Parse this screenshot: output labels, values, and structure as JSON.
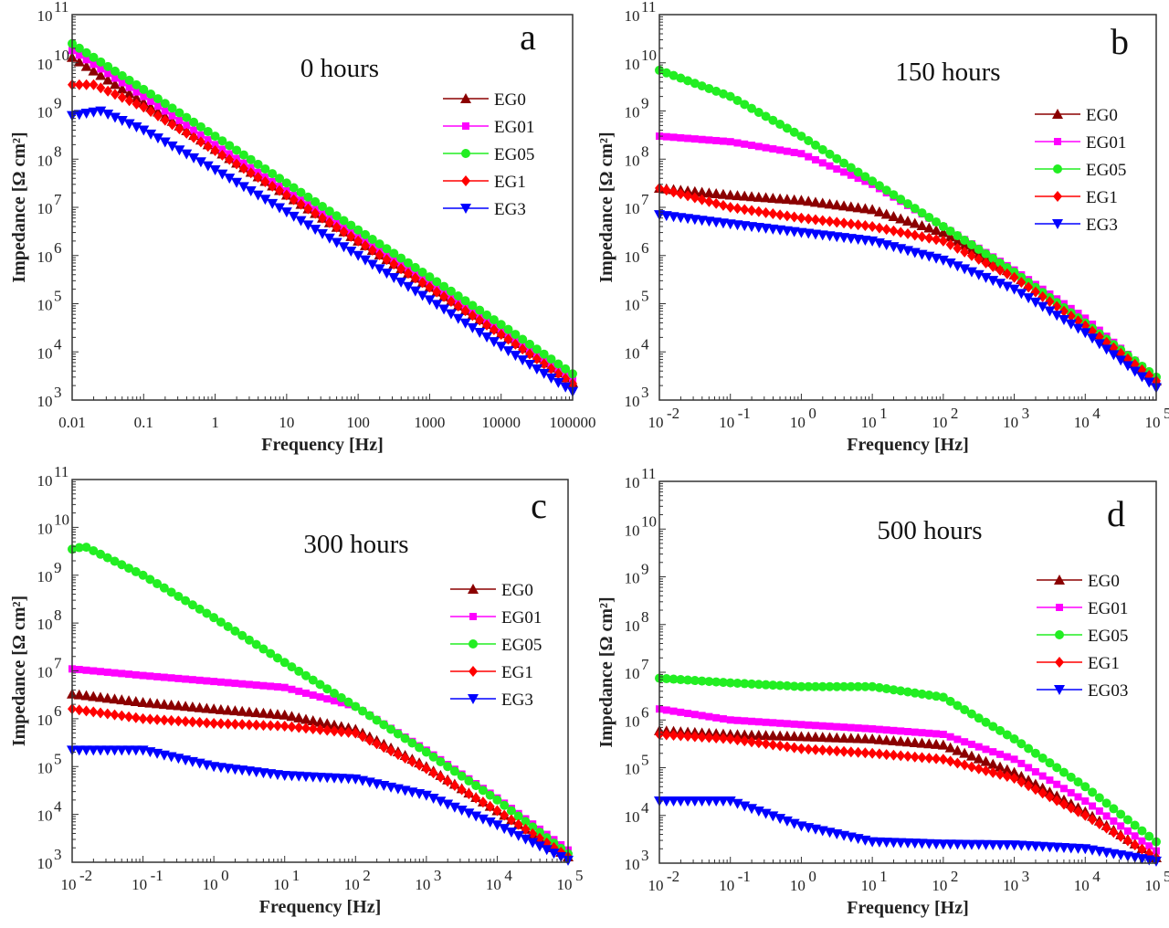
{
  "chart_data": [
    {
      "type": "scatter",
      "panel_letter": "a",
      "title": "0 hours",
      "xlabel": "Frequency [Hz]",
      "ylabel": "Impedance [Ω cm²]",
      "x_scale": "log",
      "y_scale": "log",
      "xlim": [
        0.01,
        100000
      ],
      "ylim": [
        1000,
        100000000000
      ],
      "x_tick_labels": [
        "0.01",
        "0.1",
        "1",
        "10",
        "100",
        "1000",
        "10000",
        "100000"
      ],
      "x_tick_style": "plain",
      "series": [
        {
          "name": "EG0",
          "color": "#8b0000",
          "marker": "triangle-up",
          "points": [
            [
              0.01,
              13000000000.0
            ],
            [
              0.1,
              1500000000.0
            ],
            [
              1,
              160000000.0
            ],
            [
              10,
              18000000.0
            ],
            [
              100,
              2000000.0
            ],
            [
              1000,
              220000.0
            ],
            [
              10000,
              24000.0
            ],
            [
              100000,
              2300.0
            ]
          ]
        },
        {
          "name": "EG01",
          "color": "#ff00ff",
          "marker": "square",
          "points": [
            [
              0.01,
              18000000000.0
            ],
            [
              0.1,
              2000000000.0
            ],
            [
              1,
              200000000.0
            ],
            [
              10,
              22000000.0
            ],
            [
              100,
              2400000.0
            ],
            [
              1000,
              260000.0
            ],
            [
              10000,
              27000.0
            ],
            [
              100000,
              2600.0
            ]
          ]
        },
        {
          "name": "EG05",
          "color": "#22ee22",
          "marker": "circle",
          "points": [
            [
              0.01,
              25000000000.0
            ],
            [
              0.1,
              2800000000.0
            ],
            [
              1,
              300000000.0
            ],
            [
              10,
              32000000.0
            ],
            [
              100,
              3400000.0
            ],
            [
              1000,
              360000.0
            ],
            [
              10000,
              37000.0
            ],
            [
              100000,
              3500.0
            ]
          ]
        },
        {
          "name": "EG1",
          "color": "#ff0000",
          "marker": "diamond",
          "points": [
            [
              0.01,
              3500000000.0
            ],
            [
              0.02,
              3500000000.0
            ],
            [
              0.1,
              1200000000.0
            ],
            [
              1,
              150000000.0
            ],
            [
              10,
              18000000.0
            ],
            [
              100,
              2000000.0
            ],
            [
              1000,
              220000.0
            ],
            [
              10000,
              23000.0
            ],
            [
              100000,
              2200.0
            ]
          ]
        },
        {
          "name": "EG3",
          "color": "#0000ff",
          "marker": "triangle-down",
          "points": [
            [
              0.01,
              800000000.0
            ],
            [
              0.025,
              1000000000.0
            ],
            [
              0.1,
              400000000.0
            ],
            [
              1,
              60000000.0
            ],
            [
              10,
              8000000.0
            ],
            [
              100,
              1000000.0
            ],
            [
              1000,
              120000.0
            ],
            [
              10000,
              13000.0
            ],
            [
              100000,
              1500.0
            ]
          ]
        }
      ]
    },
    {
      "type": "scatter",
      "panel_letter": "b",
      "title": "150 hours",
      "xlabel": "Frequency [Hz]",
      "ylabel": "Impedance [Ω cm²]",
      "x_scale": "log",
      "y_scale": "log",
      "xlim": [
        0.01,
        100000
      ],
      "ylim": [
        1000,
        100000000000
      ],
      "x_tick_labels": [
        "-2",
        "-1",
        "0",
        "1",
        "2",
        "3",
        "4",
        "5"
      ],
      "x_tick_style": "power10",
      "series": [
        {
          "name": "EG0",
          "color": "#8b0000",
          "marker": "triangle-up",
          "points": [
            [
              0.01,
              25000000.0
            ],
            [
              0.1,
              18000000.0
            ],
            [
              1,
              14000000.0
            ],
            [
              10,
              9000000.0
            ],
            [
              100,
              3000000.0
            ],
            [
              1000,
              400000.0
            ],
            [
              10000,
              40000.0
            ],
            [
              100000,
              2500.0
            ]
          ]
        },
        {
          "name": "EG01",
          "color": "#ff00ff",
          "marker": "square",
          "points": [
            [
              0.01,
              300000000.0
            ],
            [
              0.1,
              230000000.0
            ],
            [
              1,
              130000000.0
            ],
            [
              10,
              30000000.0
            ],
            [
              100,
              4000000.0
            ],
            [
              1000,
              500000.0
            ],
            [
              10000,
              50000.0
            ],
            [
              100000,
              2800.0
            ]
          ]
        },
        {
          "name": "EG05",
          "color": "#22ee22",
          "marker": "circle",
          "points": [
            [
              0.01,
              7000000000.0
            ],
            [
              0.1,
              2000000000.0
            ],
            [
              1,
              300000000.0
            ],
            [
              10,
              35000000.0
            ],
            [
              100,
              4000000.0
            ],
            [
              1000,
              450000.0
            ],
            [
              10000,
              40000.0
            ],
            [
              100000,
              3000.0
            ]
          ]
        },
        {
          "name": "EG1",
          "color": "#ff0000",
          "marker": "diamond",
          "points": [
            [
              0.01,
              25000000.0
            ],
            [
              0.1,
              10000000.0
            ],
            [
              1,
              6000000.0
            ],
            [
              10,
              4000000.0
            ],
            [
              100,
              2000000.0
            ],
            [
              1000,
              350000.0
            ],
            [
              10000,
              35000.0
            ],
            [
              100000,
              2500.0
            ]
          ]
        },
        {
          "name": "EG3",
          "color": "#0000ff",
          "marker": "triangle-down",
          "points": [
            [
              0.01,
              7000000.0
            ],
            [
              0.1,
              4500000.0
            ],
            [
              1,
              3000000.0
            ],
            [
              10,
              2000000.0
            ],
            [
              100,
              800000.0
            ],
            [
              1000,
              200000.0
            ],
            [
              10000,
              25000.0
            ],
            [
              100000,
              1800.0
            ]
          ]
        }
      ]
    },
    {
      "type": "scatter",
      "panel_letter": "c",
      "title": "300 hours",
      "xlabel": "Frequency [Hz]",
      "ylabel": "Impedance [Ω cm²]",
      "x_scale": "log",
      "y_scale": "log",
      "xlim": [
        0.01,
        100000
      ],
      "ylim": [
        1000,
        100000000000
      ],
      "x_tick_labels": [
        "-2",
        "-1",
        "0",
        "1",
        "2",
        "3",
        "4",
        "5"
      ],
      "x_tick_style": "power10",
      "series": [
        {
          "name": "EG0",
          "color": "#8b0000",
          "marker": "triangle-up",
          "points": [
            [
              0.01,
              3300000.0
            ],
            [
              0.1,
              2200000.0
            ],
            [
              1,
              1600000.0
            ],
            [
              10,
              1200000.0
            ],
            [
              100,
              600000.0
            ],
            [
              1000,
              100000.0
            ],
            [
              10000,
              12000.0
            ],
            [
              100000,
              1300.0
            ]
          ]
        },
        {
          "name": "EG01",
          "color": "#ff00ff",
          "marker": "square",
          "points": [
            [
              0.01,
              11000000.0
            ],
            [
              0.1,
              8000000.0
            ],
            [
              1,
              6000000.0
            ],
            [
              10,
              4500000.0
            ],
            [
              100,
              1800000.0
            ],
            [
              1000,
              220000.0
            ],
            [
              10000,
              22000.0
            ],
            [
              100000,
              1800.0
            ]
          ]
        },
        {
          "name": "EG05",
          "color": "#22ee22",
          "marker": "circle",
          "points": [
            [
              0.01,
              3500000000.0
            ],
            [
              0.015,
              4000000000.0
            ],
            [
              0.1,
              1000000000.0
            ],
            [
              1,
              130000000.0
            ],
            [
              10,
              15000000.0
            ],
            [
              100,
              1800000.0
            ],
            [
              1000,
              200000.0
            ],
            [
              10000,
              20000.0
            ],
            [
              100000,
              1500.0
            ]
          ]
        },
        {
          "name": "EG1",
          "color": "#ff0000",
          "marker": "diamond",
          "points": [
            [
              0.01,
              1600000.0
            ],
            [
              0.1,
              1000000.0
            ],
            [
              1,
              800000.0
            ],
            [
              10,
              700000.0
            ],
            [
              100,
              500000.0
            ],
            [
              1000,
              90000.0
            ],
            [
              10000,
              12000.0
            ],
            [
              100000,
              1300.0
            ]
          ]
        },
        {
          "name": "EG3",
          "color": "#0000ff",
          "marker": "triangle-down",
          "points": [
            [
              0.01,
              220000.0
            ],
            [
              0.1,
              220000.0
            ],
            [
              1,
              100000.0
            ],
            [
              10,
              65000.0
            ],
            [
              100,
              55000.0
            ],
            [
              1000,
              25000.0
            ],
            [
              10000,
              6000.0
            ],
            [
              100000,
              1100.0
            ]
          ]
        }
      ]
    },
    {
      "type": "scatter",
      "panel_letter": "d",
      "title": "500 hours",
      "xlabel": "Frequency [Hz]",
      "ylabel": "Impedance [Ω cm²]",
      "x_scale": "log",
      "y_scale": "log",
      "xlim": [
        0.01,
        100000
      ],
      "ylim": [
        1000,
        100000000000
      ],
      "x_tick_labels": [
        "-2",
        "-1",
        "0",
        "1",
        "2",
        "3",
        "4",
        "5"
      ],
      "x_tick_style": "power10",
      "series": [
        {
          "name": "EG0",
          "color": "#8b0000",
          "marker": "triangle-up",
          "points": [
            [
              0.01,
              600000.0
            ],
            [
              0.1,
              500000.0
            ],
            [
              1,
              450000.0
            ],
            [
              10,
              400000.0
            ],
            [
              100,
              300000.0
            ],
            [
              1000,
              80000.0
            ],
            [
              10000,
              12000.0
            ],
            [
              100000,
              1300.0
            ]
          ]
        },
        {
          "name": "EG01",
          "color": "#ff00ff",
          "marker": "square",
          "points": [
            [
              0.01,
              1700000.0
            ],
            [
              0.1,
              1000000.0
            ],
            [
              1,
              800000.0
            ],
            [
              10,
              650000.0
            ],
            [
              100,
              500000.0
            ],
            [
              1000,
              150000.0
            ],
            [
              10000,
              20000.0
            ],
            [
              100000,
              1800.0
            ]
          ]
        },
        {
          "name": "EG05",
          "color": "#22ee22",
          "marker": "circle",
          "points": [
            [
              0.01,
              7500000.0
            ],
            [
              0.1,
              6000000.0
            ],
            [
              1,
              5000000.0
            ],
            [
              10,
              5000000.0
            ],
            [
              100,
              3000000.0
            ],
            [
              1000,
              400000.0
            ],
            [
              10000,
              40000.0
            ],
            [
              100000,
              2800.0
            ]
          ]
        },
        {
          "name": "EG1",
          "color": "#ff0000",
          "marker": "diamond",
          "points": [
            [
              0.01,
              500000.0
            ],
            [
              0.1,
              400000.0
            ],
            [
              1,
              250000.0
            ],
            [
              10,
              200000.0
            ],
            [
              100,
              150000.0
            ],
            [
              1000,
              60000.0
            ],
            [
              10000,
              10000.0
            ],
            [
              100000,
              1300.0
            ]
          ]
        },
        {
          "name": "EG03",
          "color": "#0000ff",
          "marker": "triangle-down",
          "points": [
            [
              0.01,
              20000.0
            ],
            [
              0.1,
              20000.0
            ],
            [
              1,
              6000.0
            ],
            [
              10,
              2800.0
            ],
            [
              100,
              2500.0
            ],
            [
              1000,
              2400.0
            ],
            [
              10000,
              2000.0
            ],
            [
              100000,
              1100.0
            ]
          ]
        }
      ]
    }
  ],
  "y_tick_exponents": [
    "3",
    "4",
    "5",
    "6",
    "7",
    "8",
    "9",
    "10",
    "11"
  ]
}
